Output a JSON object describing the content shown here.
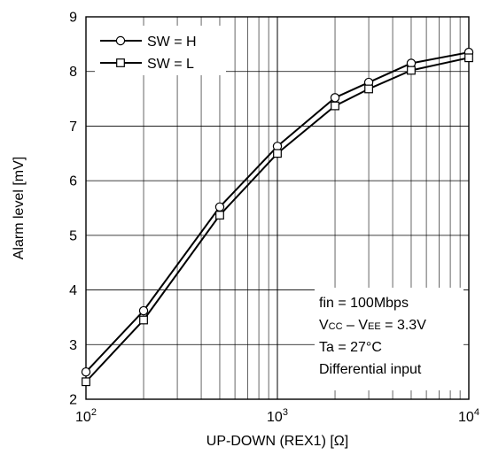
{
  "chart_data": {
    "type": "line",
    "xlabel": "UP-DOWN (REX1) [Ω]",
    "ylabel": "Alarm level [mV]",
    "x_scale": "log",
    "xlim": [
      100,
      10000
    ],
    "ylim": [
      2,
      9
    ],
    "x_ticks": [
      {
        "value": 100,
        "base": "10",
        "exp": "2"
      },
      {
        "value": 1000,
        "base": "10",
        "exp": "3"
      },
      {
        "value": 10000,
        "base": "10",
        "exp": "4"
      }
    ],
    "y_ticks": [
      2,
      3,
      4,
      5,
      6,
      7,
      8,
      9
    ],
    "grid": true,
    "legend_position": "top-left",
    "series": [
      {
        "name": "SW = H",
        "marker": "circle",
        "x": [
          100,
          200,
          500,
          1000,
          2000,
          3000,
          5000,
          10000
        ],
        "y": [
          2.5,
          3.62,
          5.52,
          6.63,
          7.52,
          7.8,
          8.15,
          8.35
        ]
      },
      {
        "name": "SW = L",
        "marker": "square",
        "x": [
          100,
          200,
          500,
          1000,
          2000,
          3000,
          5000,
          10000
        ],
        "y": [
          2.32,
          3.45,
          5.37,
          6.5,
          7.37,
          7.68,
          8.02,
          8.25
        ]
      }
    ],
    "annotations": [
      {
        "text": "fin = 100Mbps"
      },
      {
        "parts": [
          {
            "t": "V"
          },
          {
            "t": "CC",
            "sub": true
          },
          {
            "t": " – V"
          },
          {
            "t": "EE",
            "sub": true
          },
          {
            "t": " = 3.3V"
          }
        ]
      },
      {
        "text": "Ta = 27°C"
      },
      {
        "text": "Differential input"
      }
    ],
    "colors": {
      "line": "#000000",
      "grid": "#000000",
      "background": "#ffffff"
    }
  }
}
